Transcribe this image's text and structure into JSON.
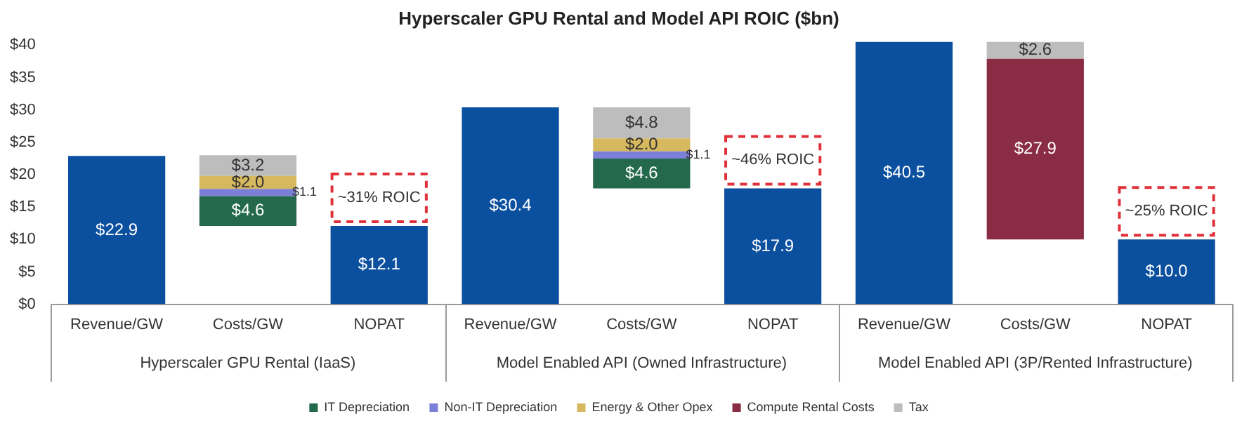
{
  "chart_data": {
    "type": "bar",
    "title": "Hyperscaler GPU Rental and Model API ROIC ($bn)",
    "categories": [
      "Revenue/GW",
      "Costs/GW",
      "NOPAT",
      "Revenue/GW",
      "Costs/GW",
      "NOPAT",
      "Revenue/GW",
      "Costs/GW",
      "NOPAT"
    ],
    "series": [
      {
        "color": "#0b4f9f",
        "values": [
          22.9,
          null,
          12.1,
          30.4,
          null,
          17.9,
          40.5,
          null,
          10.0
        ],
        "value_labels": [
          "$22.9",
          null,
          "$12.1",
          "$30.4",
          null,
          "$17.9",
          "$40.5",
          null,
          "$10.0"
        ]
      },
      {
        "name": "IT Depreciation",
        "color": "#24694c",
        "base": [
          null,
          12.1,
          null,
          null,
          17.9,
          null,
          null,
          null,
          null
        ],
        "values": [
          null,
          4.6,
          null,
          null,
          4.6,
          null,
          null,
          null,
          null
        ],
        "value_labels": [
          null,
          "$4.6",
          null,
          null,
          "$4.6",
          null,
          null,
          null,
          null
        ]
      },
      {
        "name": "Non-IT Depreciation",
        "color": "#7b7fd8",
        "base": [
          null,
          16.7,
          null,
          null,
          22.5,
          null,
          null,
          null,
          null
        ],
        "values": [
          null,
          1.1,
          null,
          null,
          1.1,
          null,
          null,
          null,
          null
        ],
        "value_labels": [
          null,
          "$1.1",
          null,
          null,
          "$1.1",
          null,
          null,
          null,
          null
        ]
      },
      {
        "name": "Energy & Other Opex",
        "color": "#d6b85e",
        "base": [
          null,
          17.8,
          null,
          null,
          23.6,
          null,
          null,
          null,
          null
        ],
        "values": [
          null,
          2.0,
          null,
          null,
          2.0,
          null,
          null,
          null,
          null
        ],
        "value_labels": [
          null,
          "$2.0",
          null,
          null,
          "$2.0",
          null,
          null,
          null,
          null
        ]
      },
      {
        "name": "Compute Rental Costs",
        "color": "#8a2c44",
        "base": [
          null,
          null,
          null,
          null,
          null,
          null,
          null,
          10.0,
          null
        ],
        "values": [
          null,
          null,
          null,
          null,
          null,
          null,
          null,
          27.9,
          null
        ],
        "value_labels": [
          null,
          null,
          null,
          null,
          null,
          null,
          null,
          "$27.9",
          null
        ]
      },
      {
        "name": "Tax",
        "color": "#bdbdbd",
        "base": [
          null,
          19.8,
          null,
          null,
          25.6,
          null,
          null,
          37.9,
          null
        ],
        "values": [
          null,
          3.2,
          null,
          null,
          4.8,
          null,
          null,
          2.6,
          null
        ],
        "value_labels": [
          null,
          "$3.2",
          null,
          null,
          "$4.8",
          null,
          null,
          "$2.6",
          null
        ]
      }
    ],
    "ylim": [
      0,
      41
    ],
    "yticks": [
      {
        "value": 0,
        "label": "$0"
      },
      {
        "value": 5,
        "label": "$5"
      },
      {
        "value": 10,
        "label": "$10"
      },
      {
        "value": 15,
        "label": "$15"
      },
      {
        "value": 20,
        "label": "$20"
      },
      {
        "value": 25,
        "label": "$25"
      },
      {
        "value": 30,
        "label": "$30"
      },
      {
        "value": 35,
        "label": "$35"
      },
      {
        "value": 40,
        "label": "$40"
      }
    ],
    "annotations": [
      "Hyperscaler GPU Rental (IaaS)",
      "Model Enabled API (Owned Infrastructure)",
      "Model Enabled API (3P/Rented Infrastructure)",
      "~31% ROIC",
      "~46% ROIC",
      "~25% ROIC"
    ],
    "legend": "bottom",
    "grid": false
  }
}
